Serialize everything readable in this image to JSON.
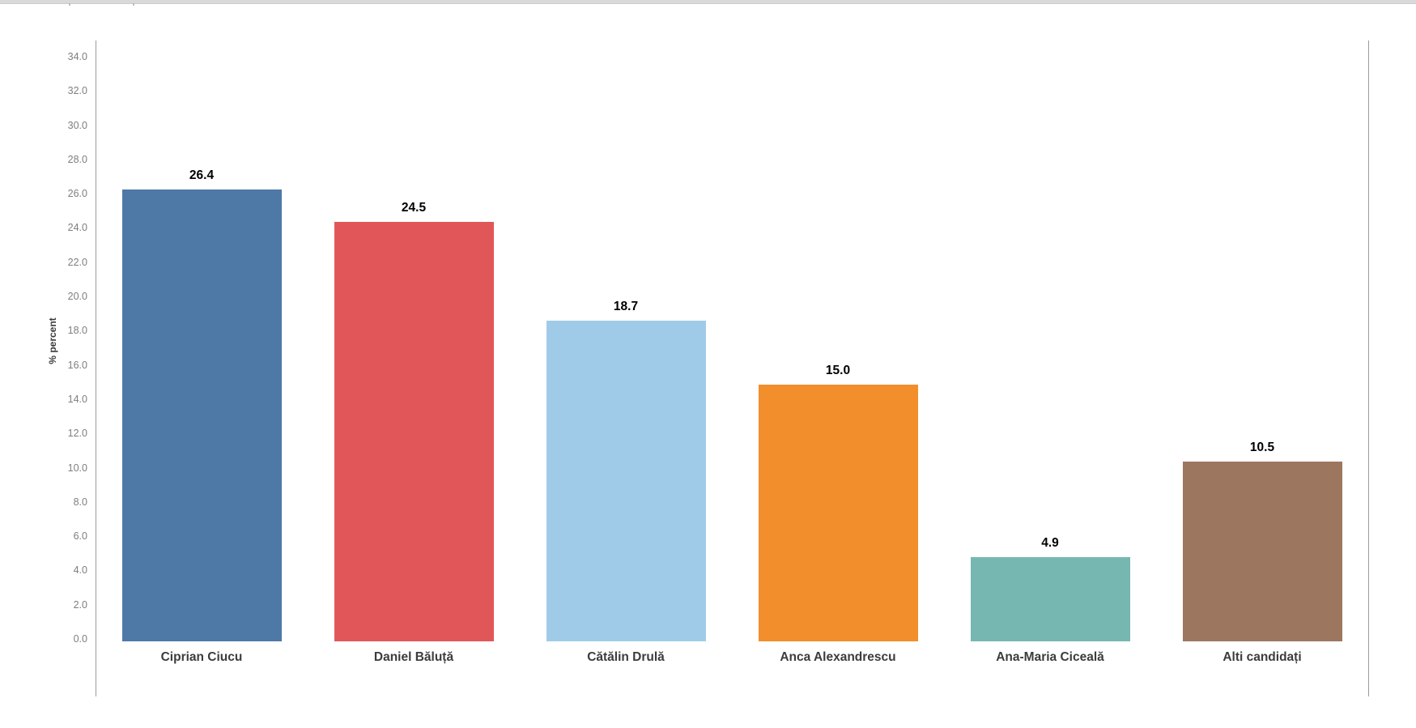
{
  "page": {
    "background": "#ffffff",
    "top_strip_color": "#d9d9d9"
  },
  "chart_data": {
    "type": "bar",
    "title": "",
    "xlabel": "",
    "ylabel": "% percent",
    "ylim": [
      0,
      35
    ],
    "grid": false,
    "legend": "none",
    "y_tick_values": [
      0,
      2,
      4,
      6,
      8,
      10,
      12,
      14,
      16,
      18,
      20,
      22,
      24,
      26,
      28,
      30,
      32,
      34
    ],
    "y_tick_labels": [
      "0.0",
      "2.0",
      "4.0",
      "6.0",
      "8.0",
      "10.0",
      "12.0",
      "14.0",
      "16.0",
      "18.0",
      "20.0",
      "22.0",
      "24.0",
      "26.0",
      "28.0",
      "30.0",
      "32.0",
      "34.0"
    ],
    "categories": [
      "Ciprian Ciucu",
      "Daniel Băluță",
      "Cătălin Drulă",
      "Anca Alexandrescu",
      "Ana-Maria Ciceală",
      "Alti candidați"
    ],
    "values": [
      26.4,
      24.5,
      18.7,
      15.0,
      4.9,
      10.5
    ],
    "value_labels": [
      "26.4",
      "24.5",
      "18.7",
      "15.0",
      "4.9",
      "10.5"
    ],
    "bar_colors": [
      "#4e79a7",
      "#e15759",
      "#a0cbe8",
      "#f28e2b",
      "#76b7b2",
      "#9d7660"
    ],
    "axis_color": "#9b9b9b",
    "tick_label_color": "#7e7e7e",
    "value_label_color": "#000000",
    "category_label_color": "#3c3c3c"
  }
}
